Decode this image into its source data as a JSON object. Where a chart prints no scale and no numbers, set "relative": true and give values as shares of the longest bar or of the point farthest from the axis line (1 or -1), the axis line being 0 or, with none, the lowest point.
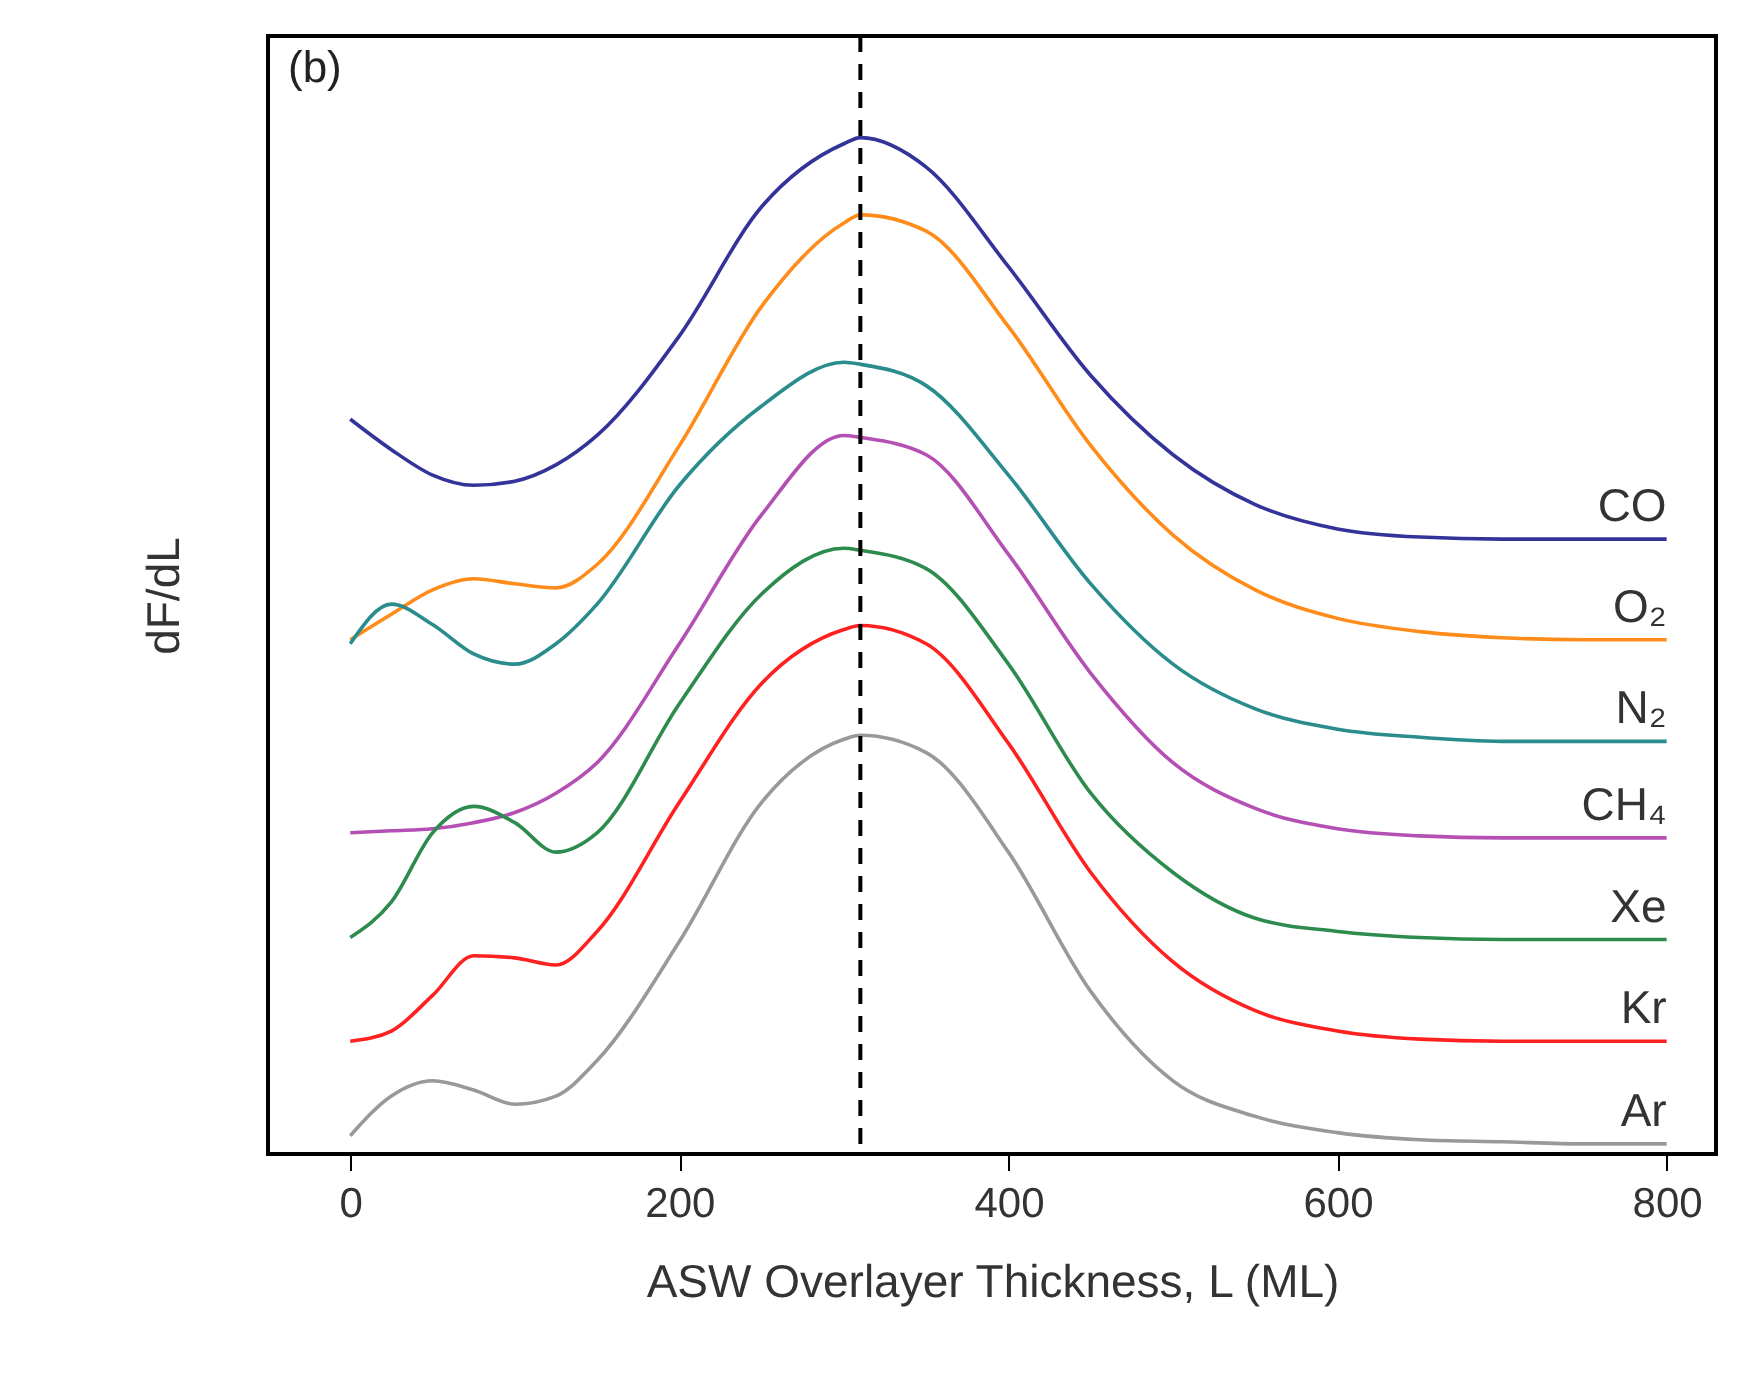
{
  "chart_data": {
    "type": "line",
    "xlabel": "ASW Overlayer Thickness, L (ML)",
    "ylabel": "dF/dL",
    "relative": true,
    "legend": false,
    "grid": false,
    "marker": "none",
    "line_style": "solid",
    "x": [
      0,
      25,
      50,
      75,
      100,
      125,
      150,
      200,
      250,
      300,
      310,
      350,
      400,
      450,
      500,
      550,
      600,
      650,
      700,
      750,
      800
    ],
    "xlim": [
      -50,
      830
    ],
    "xticks": [
      0,
      200,
      400,
      600,
      800
    ],
    "series": [
      {
        "name": "CO",
        "color": "#33339a",
        "values": [
          0.723,
          0.693,
          0.668,
          0.658,
          0.662,
          0.678,
          0.707,
          0.805,
          0.932,
          0.994,
          1.0,
          0.971,
          0.873,
          0.766,
          0.688,
          0.639,
          0.615,
          0.607,
          0.605,
          0.605,
          0.605
        ]
      },
      {
        "name": "O₂",
        "color": "#ff8c1a",
        "values": [
          0.506,
          0.531,
          0.555,
          0.566,
          0.561,
          0.557,
          0.58,
          0.697,
          0.834,
          0.916,
          0.924,
          0.908,
          0.814,
          0.697,
          0.609,
          0.555,
          0.527,
          0.514,
          0.508,
          0.506,
          0.506
        ]
      },
      {
        "name": "N₂",
        "color": "#2a8c8c",
        "values": [
          0.502,
          0.541,
          0.521,
          0.492,
          0.482,
          0.502,
          0.541,
          0.658,
          0.736,
          0.779,
          0.777,
          0.756,
          0.668,
          0.561,
          0.482,
          0.438,
          0.418,
          0.41,
          0.406,
          0.406,
          0.406
        ]
      },
      {
        "name": "CH₄",
        "color": "#b44fb4",
        "values": [
          0.316,
          0.318,
          0.32,
          0.326,
          0.336,
          0.355,
          0.385,
          0.502,
          0.629,
          0.707,
          0.705,
          0.688,
          0.59,
          0.473,
          0.385,
          0.34,
          0.32,
          0.313,
          0.311,
          0.311,
          0.311
        ]
      },
      {
        "name": "Xe",
        "color": "#2e8b4e",
        "values": [
          0.213,
          0.248,
          0.316,
          0.342,
          0.326,
          0.297,
          0.316,
          0.443,
          0.551,
          0.596,
          0.594,
          0.576,
          0.482,
          0.355,
          0.277,
          0.232,
          0.219,
          0.213,
          0.211,
          0.211,
          0.211
        ]
      },
      {
        "name": "Kr",
        "color": "#ff2020",
        "values": [
          0.111,
          0.121,
          0.156,
          0.195,
          0.193,
          0.186,
          0.219,
          0.346,
          0.463,
          0.516,
          0.52,
          0.502,
          0.404,
          0.277,
          0.189,
          0.141,
          0.121,
          0.113,
          0.111,
          0.111,
          0.111
        ]
      },
      {
        "name": "Ar",
        "color": "#999999",
        "values": [
          0.018,
          0.057,
          0.072,
          0.063,
          0.049,
          0.057,
          0.092,
          0.209,
          0.346,
          0.408,
          0.412,
          0.395,
          0.297,
          0.16,
          0.072,
          0.037,
          0.021,
          0.014,
          0.012,
          0.01,
          0.01
        ]
      }
    ],
    "ref_lines": [
      {
        "axis": "x",
        "value": 310,
        "color": "#000000",
        "line_style": "dashed"
      }
    ],
    "annotations": [
      "(b)"
    ]
  }
}
